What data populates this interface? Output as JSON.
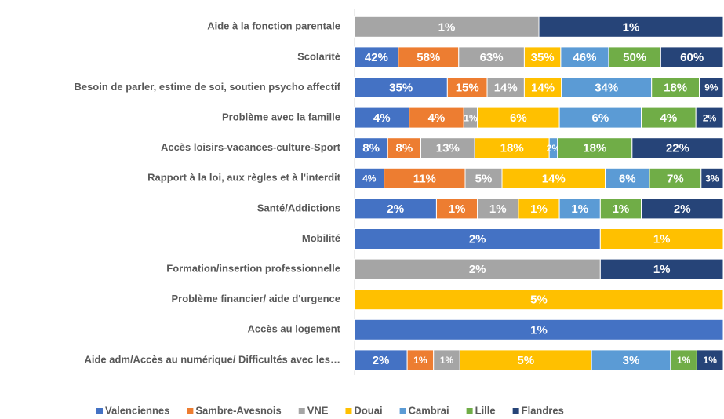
{
  "chart_data": {
    "type": "stacked_bar_100",
    "categories": [
      "Aide à la fonction parentale",
      "Scolarité",
      "Besoin de parler, estime de soi, soutien psycho affectif",
      "Problème avec la famille",
      "Accès loisirs-vacances-culture-Sport",
      "Rapport à la loi, aux règles et à l'interdit",
      "Santé/Addictions",
      "Mobilité",
      "Formation/insertion professionnelle",
      "Problème financier/ aide d'urgence",
      "Accès au logement",
      "Aide adm/Accès au numérique/ Difficultés avec les…"
    ],
    "series": [
      {
        "name": "Valenciennes",
        "color": "#4472c4",
        "values": [
          null,
          42,
          35,
          4,
          8,
          4,
          2,
          2,
          null,
          null,
          1,
          2
        ],
        "value_labels": [
          null,
          "42%",
          "35%",
          "4%",
          "8%",
          "4%",
          "2%",
          "2%",
          null,
          null,
          "1%",
          "2%"
        ]
      },
      {
        "name": "Sambre-Avesnois",
        "color": "#ed7d31",
        "values": [
          null,
          58,
          15,
          4,
          8,
          11,
          1,
          null,
          null,
          null,
          null,
          1
        ],
        "value_labels": [
          null,
          "58%",
          "15%",
          "4%",
          "8%",
          "11%",
          "1%",
          null,
          null,
          null,
          null,
          "1%"
        ]
      },
      {
        "name": "VNE",
        "color": "#a5a5a5",
        "values": [
          1,
          63,
          14,
          1,
          13,
          5,
          1,
          null,
          2,
          null,
          null,
          1
        ],
        "value_labels": [
          "1%",
          "63%",
          "14%",
          "1%",
          "13%",
          "5%",
          "1%",
          null,
          "2%",
          null,
          null,
          "1%"
        ]
      },
      {
        "name": "Douai",
        "color": "#ffc000",
        "values": [
          null,
          35,
          14,
          6,
          18,
          14,
          1,
          1,
          null,
          5,
          null,
          5
        ],
        "value_labels": [
          null,
          "35%",
          "14%",
          "6%",
          "18%",
          "14%",
          "1%",
          "1%",
          null,
          "5%",
          null,
          "5%"
        ]
      },
      {
        "name": "Cambrai",
        "color": "#5b9bd5",
        "values": [
          null,
          46,
          34,
          6,
          2,
          6,
          1,
          null,
          null,
          null,
          null,
          3
        ],
        "value_labels": [
          null,
          "46%",
          "34%",
          "6%",
          "2%",
          "6%",
          "1%",
          null,
          null,
          null,
          null,
          "3%"
        ]
      },
      {
        "name": "Lille",
        "color": "#70ad47",
        "values": [
          null,
          50,
          18,
          4,
          18,
          7,
          1,
          null,
          null,
          null,
          null,
          1
        ],
        "value_labels": [
          null,
          "50%",
          "18%",
          "4%",
          "18%",
          "7%",
          "1%",
          null,
          null,
          null,
          null,
          "1%"
        ]
      },
      {
        "name": "Flandres",
        "color": "#264478",
        "values": [
          1,
          60,
          9,
          2,
          22,
          3,
          2,
          null,
          1,
          null,
          null,
          1
        ],
        "value_labels": [
          "1%",
          "60%",
          "9%",
          "2%",
          "22%",
          "3%",
          "2%",
          null,
          "1%",
          null,
          null,
          "1%"
        ]
      }
    ]
  }
}
